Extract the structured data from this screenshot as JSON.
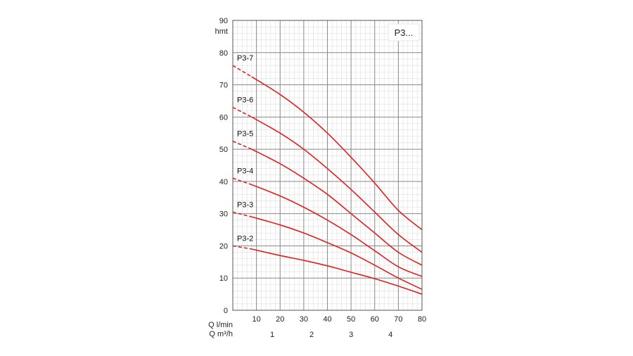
{
  "chart_data": {
    "type": "line",
    "title": "P3...",
    "ylabel": "hmt",
    "xlabel_primary": "Q l/min",
    "xlabel_secondary": "Q m³/h",
    "ylim": [
      0,
      90
    ],
    "xlim": [
      0,
      80
    ],
    "y_ticks": [
      0,
      10,
      20,
      30,
      40,
      50,
      60,
      70,
      80,
      90
    ],
    "x_ticks": [
      10,
      20,
      30,
      40,
      50,
      60,
      70,
      80
    ],
    "x2_ticks": [
      1,
      2,
      3,
      4
    ],
    "grid": true,
    "series_color": "#e02020",
    "series": [
      {
        "name": "P3-2",
        "solid_from": 8,
        "points": [
          [
            0,
            20
          ],
          [
            8,
            19
          ],
          [
            20,
            17
          ],
          [
            30,
            15.5
          ],
          [
            40,
            13.8
          ],
          [
            50,
            11.8
          ],
          [
            60,
            9.8
          ],
          [
            70,
            7.5
          ],
          [
            80,
            5
          ]
        ]
      },
      {
        "name": "P3-3",
        "solid_from": 8,
        "points": [
          [
            0,
            30.5
          ],
          [
            8,
            29
          ],
          [
            20,
            26.5
          ],
          [
            30,
            24
          ],
          [
            40,
            21
          ],
          [
            50,
            17.8
          ],
          [
            60,
            14
          ],
          [
            70,
            10
          ],
          [
            80,
            6.5
          ]
        ]
      },
      {
        "name": "P3-4",
        "solid_from": 8,
        "points": [
          [
            0,
            41
          ],
          [
            8,
            39
          ],
          [
            20,
            35.5
          ],
          [
            30,
            32
          ],
          [
            40,
            28
          ],
          [
            50,
            23.5
          ],
          [
            60,
            18.5
          ],
          [
            70,
            13.5
          ],
          [
            80,
            10.5
          ]
        ]
      },
      {
        "name": "P3-5",
        "solid_from": 8,
        "points": [
          [
            0,
            52.5
          ],
          [
            8,
            50
          ],
          [
            20,
            45.5
          ],
          [
            30,
            41
          ],
          [
            40,
            36
          ],
          [
            50,
            30
          ],
          [
            60,
            24
          ],
          [
            70,
            18
          ],
          [
            80,
            14
          ]
        ]
      },
      {
        "name": "P3-6",
        "solid_from": 8,
        "points": [
          [
            0,
            63
          ],
          [
            8,
            60
          ],
          [
            20,
            55
          ],
          [
            30,
            50
          ],
          [
            40,
            44
          ],
          [
            50,
            37.5
          ],
          [
            60,
            30.5
          ],
          [
            70,
            23.5
          ],
          [
            80,
            18
          ]
        ]
      },
      {
        "name": "P3-7",
        "solid_from": 8,
        "points": [
          [
            0,
            76
          ],
          [
            8,
            72.5
          ],
          [
            20,
            67
          ],
          [
            30,
            61.5
          ],
          [
            40,
            55
          ],
          [
            50,
            47.5
          ],
          [
            60,
            39.5
          ],
          [
            70,
            31
          ],
          [
            80,
            25
          ]
        ]
      }
    ]
  }
}
